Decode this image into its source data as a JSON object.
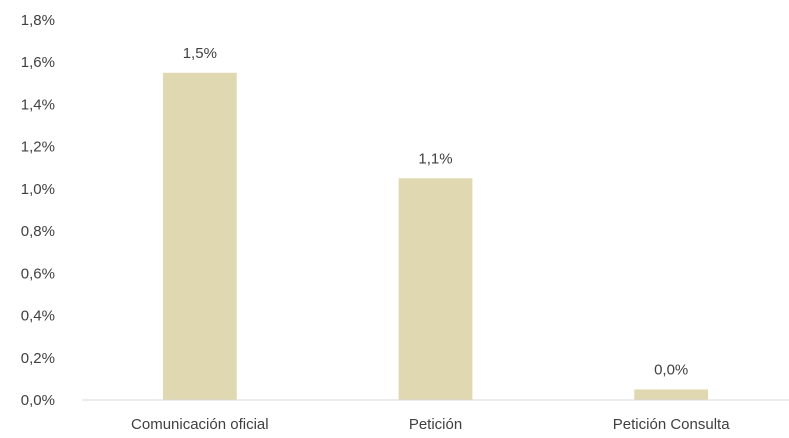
{
  "chart_data": {
    "type": "bar",
    "categories": [
      "Comunicación oficial",
      "Petición",
      "Petición Consulta"
    ],
    "values": [
      1.55,
      1.05,
      0.05
    ],
    "data_labels": [
      "1,5%",
      "1,1%",
      "0,0%"
    ],
    "ylim": [
      0,
      1.8
    ],
    "yticks": [
      0,
      0.2,
      0.4,
      0.6,
      0.8,
      1.0,
      1.2,
      1.4,
      1.6,
      1.8
    ],
    "ytick_labels": [
      "0,0%",
      "0,2%",
      "0,4%",
      "0,6%",
      "0,8%",
      "1,0%",
      "1,2%",
      "1,4%",
      "1,6%",
      "1,8%"
    ],
    "title": "",
    "xlabel": "",
    "ylabel": "",
    "grid": false,
    "bar_color": "#E0D8B0",
    "axis_color": "#D9D9D9",
    "text_color": "#404040"
  }
}
